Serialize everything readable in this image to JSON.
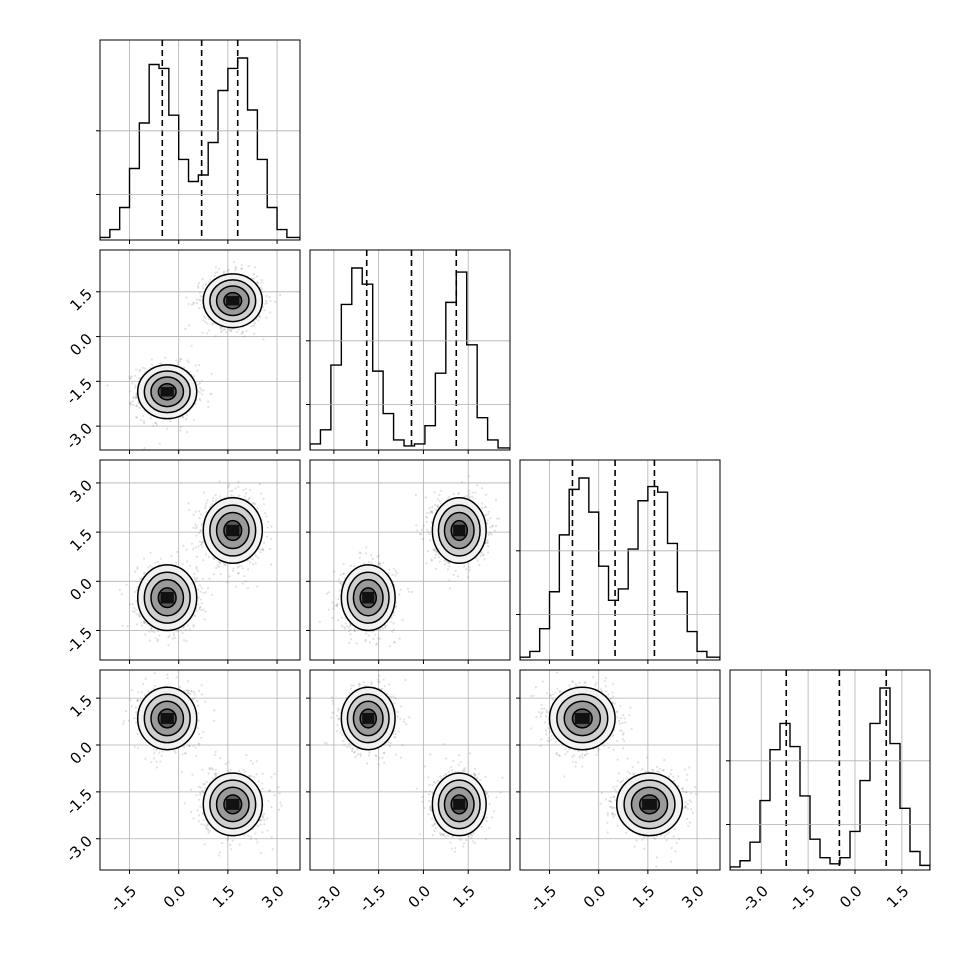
{
  "chart_data": {
    "type": "corner",
    "n_params": 4,
    "grid": true,
    "panel_ranges": [
      [
        -2.4,
        3.7
      ],
      [
        -3.8,
        2.9
      ],
      [
        -2.4,
        3.7
      ],
      [
        -4.0,
        2.4
      ]
    ],
    "bottom_tick_labels": [
      [
        "-1.5",
        "0.0",
        "1.5",
        "3.0"
      ],
      [
        "-3.0",
        "-1.5",
        "0.0",
        "1.5"
      ],
      [
        "-1.5",
        "0.0",
        "1.5",
        "3.0"
      ],
      [
        "-3.0",
        "-1.5",
        "0.0",
        "1.5"
      ]
    ],
    "bottom_tick_values": [
      [
        -1.5,
        0.0,
        1.5,
        3.0
      ],
      [
        -3.0,
        -1.5,
        0.0,
        1.5
      ],
      [
        -1.5,
        0.0,
        1.5,
        3.0
      ],
      [
        -3.0,
        -1.5,
        0.0,
        1.5
      ]
    ],
    "left_tick_labels": [
      [],
      [
        "-3.0",
        "-1.5",
        "0.0",
        "1.5"
      ],
      [
        "-1.5",
        "0.0",
        "1.5",
        "3.0"
      ],
      [
        "-3.0",
        "-1.5",
        "0.0",
        "1.5"
      ]
    ],
    "left_tick_values": [
      [],
      [
        -3.0,
        -1.5,
        0.0,
        1.5
      ],
      [
        -1.5,
        0.0,
        1.5,
        3.0
      ],
      [
        -3.0,
        -1.5,
        0.0,
        1.5
      ]
    ],
    "histograms": [
      {
        "param": 1,
        "bins": [
          -2.4,
          -2.1,
          -1.8,
          -1.5,
          -1.2,
          -0.9,
          -0.6,
          -0.3,
          0.0,
          0.3,
          0.6,
          0.9,
          1.2,
          1.5,
          1.8,
          2.1,
          2.4,
          2.7,
          3.0,
          3.3,
          3.7
        ],
        "counts": [
          2,
          8,
          25,
          55,
          90,
          135,
          132,
          96,
          62,
          45,
          50,
          75,
          115,
          132,
          140,
          100,
          62,
          25,
          8,
          2
        ],
        "quantile_lines": [
          -0.5,
          0.7,
          1.8
        ]
      },
      {
        "param": 2,
        "bins": [
          -3.8,
          -3.45,
          -3.1,
          -2.75,
          -2.4,
          -2.05,
          -1.7,
          -1.35,
          -1.0,
          -0.65,
          -0.3,
          0.05,
          0.4,
          0.75,
          1.1,
          1.45,
          1.8,
          2.15,
          2.5,
          2.9
        ],
        "counts": [
          3,
          10,
          42,
          72,
          90,
          82,
          39,
          18,
          5,
          2,
          3,
          12,
          38,
          73,
          88,
          52,
          16,
          5,
          1
        ],
        "quantile_lines": [
          -1.9,
          -0.4,
          1.1
        ]
      },
      {
        "param": 3,
        "bins": [
          -2.4,
          -2.1,
          -1.8,
          -1.5,
          -1.2,
          -0.9,
          -0.6,
          -0.3,
          0.0,
          0.3,
          0.6,
          0.9,
          1.2,
          1.5,
          1.8,
          2.1,
          2.4,
          2.7,
          3.0,
          3.3,
          3.7
        ],
        "counts": [
          2,
          6,
          22,
          48,
          88,
          120,
          128,
          104,
          66,
          42,
          50,
          78,
          112,
          122,
          118,
          82,
          48,
          20,
          6,
          2
        ],
        "quantile_lines": [
          -0.8,
          0.5,
          1.7
        ]
      },
      {
        "param": 4,
        "bins": [
          -4.0,
          -3.68,
          -3.36,
          -3.04,
          -2.72,
          -2.4,
          -2.08,
          -1.76,
          -1.44,
          -1.12,
          -0.8,
          -0.48,
          -0.16,
          0.16,
          0.48,
          0.8,
          1.12,
          1.44,
          1.76,
          2.08,
          2.4
        ],
        "counts": [
          2,
          6,
          18,
          45,
          78,
          95,
          80,
          48,
          20,
          8,
          4,
          8,
          25,
          58,
          95,
          118,
          82,
          40,
          12,
          3
        ],
        "quantile_lines": [
          -2.2,
          -0.5,
          1.0
        ]
      }
    ],
    "modes": [
      {
        "weight": 0.5,
        "center": [
          -0.35,
          -1.85,
          -0.5,
          0.85
        ]
      },
      {
        "weight": 0.5,
        "center": [
          1.65,
          1.2,
          1.55,
          -1.9
        ]
      }
    ],
    "mode_sigma": [
      0.45,
      0.45,
      0.5,
      0.5
    ]
  }
}
